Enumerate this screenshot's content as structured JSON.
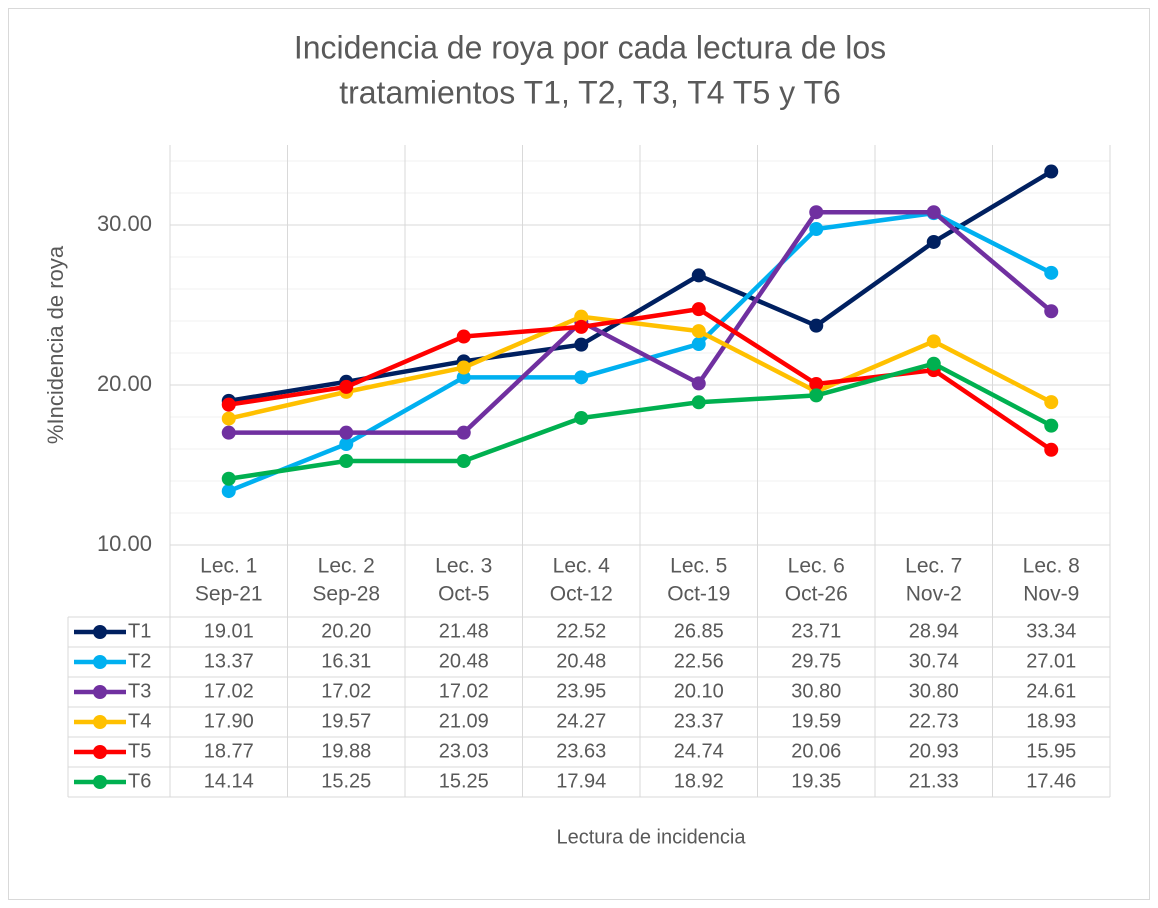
{
  "chart_data": {
    "type": "line",
    "title": [
      "Incidencia de roya por cada lectura de los",
      "tratamientos T1, T2, T3, T4 T5 y T6"
    ],
    "x_label": "Lectura de incidencia",
    "y_label": "%Incidencia de roya",
    "categories": [
      [
        "Lec. 1",
        "Sep-21"
      ],
      [
        "Lec. 2",
        "Sep-28"
      ],
      [
        "Lec. 3",
        "Oct-5"
      ],
      [
        "Lec. 4",
        "Oct-12"
      ],
      [
        "Lec. 5",
        "Oct-19"
      ],
      [
        "Lec. 6",
        "Oct-26"
      ],
      [
        "Lec. 7",
        "Nov-2"
      ],
      [
        "Lec. 8",
        "Nov-9"
      ]
    ],
    "series": [
      {
        "name": "T1",
        "color": "#002060",
        "values": [
          19.01,
          20.2,
          21.48,
          22.52,
          26.85,
          23.71,
          28.94,
          33.34
        ],
        "value_labels": [
          "19.01",
          "20.20",
          "21.48",
          "22.52",
          "26.85",
          "23.71",
          "28.94",
          "33.34"
        ]
      },
      {
        "name": "T2",
        "color": "#00B0F0",
        "values": [
          13.37,
          16.31,
          20.48,
          20.48,
          22.56,
          29.75,
          30.74,
          27.01
        ],
        "value_labels": [
          "13.37",
          "16.31",
          "20.48",
          "20.48",
          "22.56",
          "29.75",
          "30.74",
          "27.01"
        ]
      },
      {
        "name": "T3",
        "color": "#7030A0",
        "values": [
          17.02,
          17.02,
          17.02,
          23.95,
          20.1,
          30.8,
          30.8,
          24.61
        ],
        "value_labels": [
          "17.02",
          "17.02",
          "17.02",
          "23.95",
          "20.10",
          "30.80",
          "30.80",
          "24.61"
        ]
      },
      {
        "name": "T4",
        "color": "#FFC000",
        "values": [
          17.9,
          19.57,
          21.09,
          24.27,
          23.37,
          19.59,
          22.73,
          18.93
        ],
        "value_labels": [
          "17.90",
          "19.57",
          "21.09",
          "24.27",
          "23.37",
          "19.59",
          "22.73",
          "18.93"
        ]
      },
      {
        "name": "T5",
        "color": "#FF0000",
        "values": [
          18.77,
          19.88,
          23.03,
          23.63,
          24.74,
          20.06,
          20.93,
          15.95
        ],
        "value_labels": [
          "18.77",
          "19.88",
          "23.03",
          "23.63",
          "24.74",
          "20.06",
          "20.93",
          "15.95"
        ]
      },
      {
        "name": "T6",
        "color": "#00B050",
        "values": [
          14.14,
          15.25,
          15.25,
          17.94,
          18.92,
          19.35,
          21.33,
          17.46
        ],
        "value_labels": [
          "14.14",
          "15.25",
          "15.25",
          "17.94",
          "18.92",
          "19.35",
          "21.33",
          "17.46"
        ]
      }
    ],
    "ylim": [
      10,
      35
    ],
    "yticks": [
      {
        "value": 10,
        "label": "10.00"
      },
      {
        "value": 20,
        "label": "20.00"
      },
      {
        "value": 30,
        "label": "30.00"
      }
    ],
    "yminorticks": [
      12,
      14,
      16,
      18,
      22,
      24,
      26,
      28,
      32,
      34
    ],
    "grid": true
  }
}
